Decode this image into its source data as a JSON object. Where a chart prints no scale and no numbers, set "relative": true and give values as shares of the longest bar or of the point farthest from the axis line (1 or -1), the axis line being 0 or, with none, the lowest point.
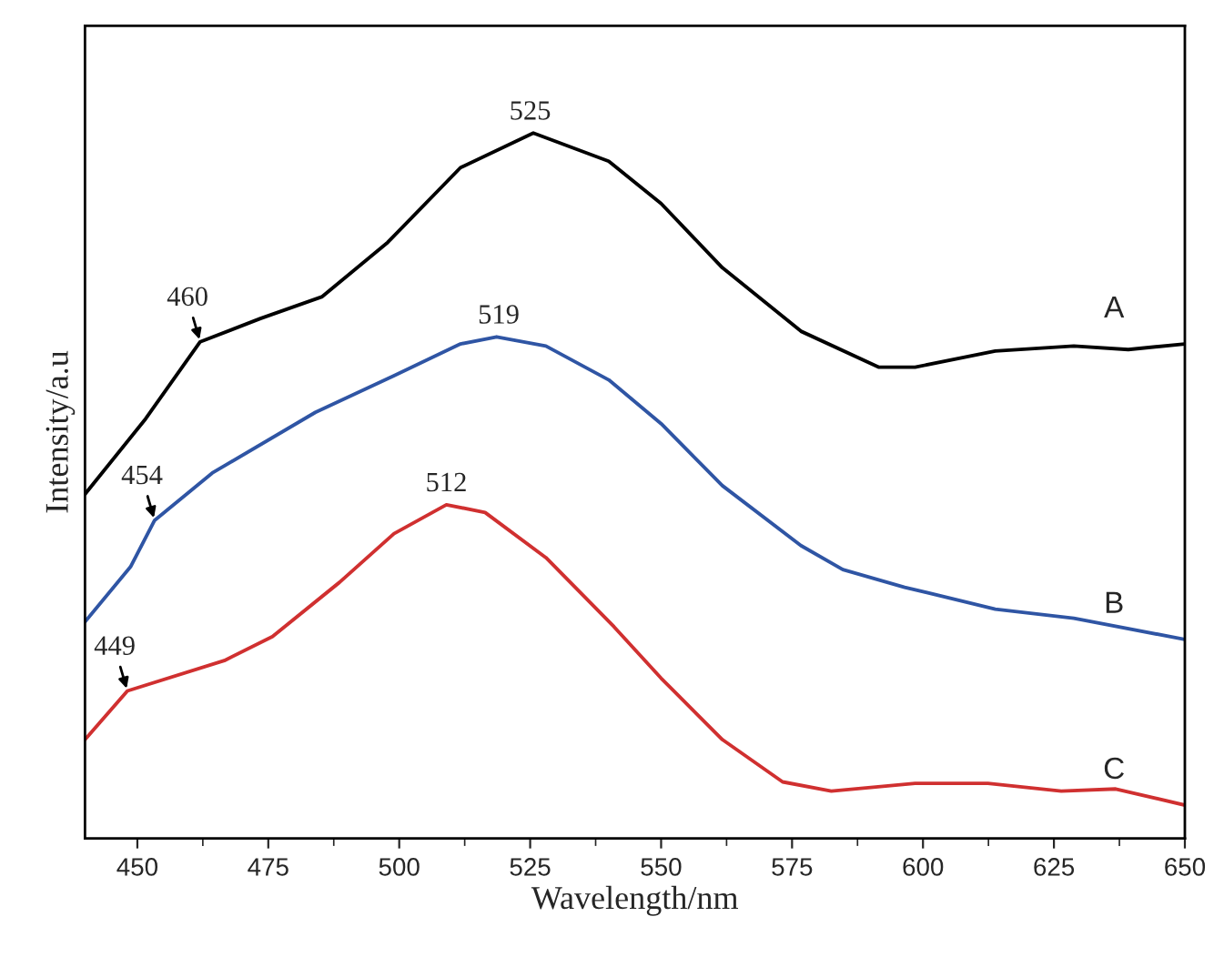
{
  "chart_data": {
    "type": "line",
    "relative": true,
    "xlabel": "Wavelength/nm",
    "ylabel": "Intensity/a.u",
    "xlim": [
      440,
      650
    ],
    "xticks": [
      450,
      475,
      500,
      525,
      550,
      575,
      600,
      625,
      650
    ],
    "series": [
      {
        "name": "A",
        "color": "#000000",
        "x": [
          440,
          451.6,
          462,
          473.5,
          485.3,
          497.8,
          511.7,
          525.6,
          540,
          550,
          561.7,
          576.7,
          591.6,
          598.5,
          613.8,
          628.8,
          639.2,
          650
        ],
        "values": [
          0.488,
          0.595,
          0.704,
          0.737,
          0.768,
          0.845,
          0.951,
          1.0,
          0.96,
          0.9,
          0.809,
          0.719,
          0.668,
          0.668,
          0.691,
          0.698,
          0.693,
          0.701
        ]
      },
      {
        "name": "B",
        "color": "#2f55a4",
        "x": [
          440,
          448.7,
          453.3,
          464.3,
          484,
          499,
          511.7,
          518.6,
          528,
          540,
          550,
          561.7,
          576.7,
          584.7,
          596.5,
          613.8,
          628.8,
          650
        ],
        "values": [
          0.307,
          0.385,
          0.451,
          0.518,
          0.604,
          0.656,
          0.701,
          0.711,
          0.698,
          0.65,
          0.588,
          0.5,
          0.415,
          0.381,
          0.356,
          0.325,
          0.312,
          0.282
        ]
      },
      {
        "name": "C",
        "color": "#d03030",
        "x": [
          440,
          448.1,
          466.6,
          475.8,
          488.6,
          499,
          509,
          516.4,
          528,
          541,
          550,
          561.7,
          573.2,
          582.5,
          598.5,
          612.4,
          626.4,
          636.8,
          650
        ],
        "values": [
          0.14,
          0.209,
          0.252,
          0.286,
          0.363,
          0.432,
          0.473,
          0.462,
          0.398,
          0.3,
          0.227,
          0.14,
          0.08,
          0.067,
          0.078,
          0.078,
          0.067,
          0.07,
          0.047
        ]
      }
    ],
    "annotations": [
      {
        "text": "525",
        "x": 525,
        "y": 1.0
      },
      {
        "text": "460",
        "x": 462,
        "y": 0.704
      },
      {
        "text": "519",
        "x": 519,
        "y": 0.711
      },
      {
        "text": "454",
        "x": 453.3,
        "y": 0.451
      },
      {
        "text": "512",
        "x": 509,
        "y": 0.473
      },
      {
        "text": "449",
        "x": 448.1,
        "y": 0.209
      }
    ]
  }
}
